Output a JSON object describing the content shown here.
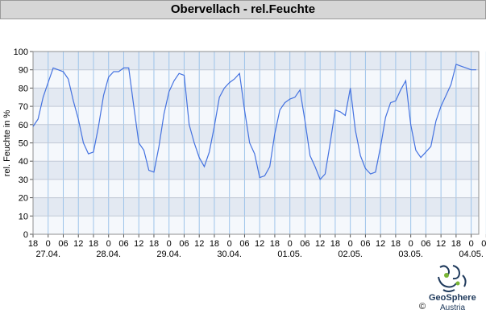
{
  "chart_data": {
    "type": "line",
    "title": "Obervellach - rel.Feuchte",
    "ylabel": "rel. Feuchte in %",
    "ylim": [
      0,
      100
    ],
    "yticks": [
      "0",
      "10",
      "20",
      "30",
      "40",
      "50",
      "60",
      "70",
      "80",
      "90",
      "100"
    ],
    "xlim": [
      0,
      177
    ],
    "x_hour_labels": [
      "18",
      "0",
      "06",
      "12",
      "18",
      "0",
      "06",
      "12",
      "18",
      "0",
      "06",
      "12",
      "18",
      "0",
      "06",
      "12",
      "18",
      "0",
      "06",
      "12",
      "18",
      "0",
      "06",
      "12",
      "18",
      "0",
      "06",
      "12",
      "18",
      "0",
      "06"
    ],
    "date_labels": [
      "27.04.",
      "28.04.",
      "29.04.",
      "30.04.",
      "01.05.",
      "02.05.",
      "03.05.",
      "04.05."
    ],
    "grid": true,
    "series": [
      {
        "name": "",
        "color": "#4472e0",
        "x": [
          0,
          2,
          4,
          6,
          8,
          10,
          12,
          14,
          16,
          18,
          20,
          22,
          24,
          26,
          28,
          30,
          32,
          34,
          36,
          38,
          40,
          42,
          44,
          46,
          48,
          50,
          52,
          54,
          56,
          58,
          60,
          62,
          64,
          66,
          68,
          70,
          72,
          74,
          76,
          78,
          80,
          82,
          84,
          86,
          88,
          90,
          92,
          94,
          96,
          98,
          100,
          102,
          104,
          106,
          108,
          110,
          112,
          114,
          116,
          118,
          120,
          122,
          124,
          126,
          128,
          130,
          132,
          134,
          136,
          138,
          140,
          142,
          144,
          146,
          148,
          150,
          152,
          154,
          156,
          158,
          160,
          162,
          164,
          166,
          168,
          170,
          172,
          174,
          176
        ],
        "values": [
          59,
          63,
          75,
          83,
          91,
          90,
          89,
          85,
          73,
          63,
          50,
          44,
          45,
          59,
          76,
          86,
          89,
          89,
          91,
          91,
          70,
          50,
          46,
          35,
          34,
          48,
          66,
          78,
          84,
          88,
          87,
          60,
          50,
          42,
          37,
          45,
          59,
          75,
          80,
          83,
          85,
          88,
          68,
          50,
          44,
          31,
          32,
          37,
          55,
          68,
          72,
          74,
          75,
          79,
          62,
          43,
          37,
          30,
          33,
          50,
          68,
          67,
          65,
          80,
          57,
          43,
          36,
          33,
          34,
          48,
          64,
          72,
          73,
          79,
          84,
          60,
          46,
          42,
          45,
          48,
          62,
          70,
          76,
          82,
          93,
          92,
          91,
          90,
          90
        ]
      }
    ]
  },
  "footer": {
    "brand_name": "GeoSphere",
    "brand_sub": "Austria",
    "copyright": "©"
  }
}
